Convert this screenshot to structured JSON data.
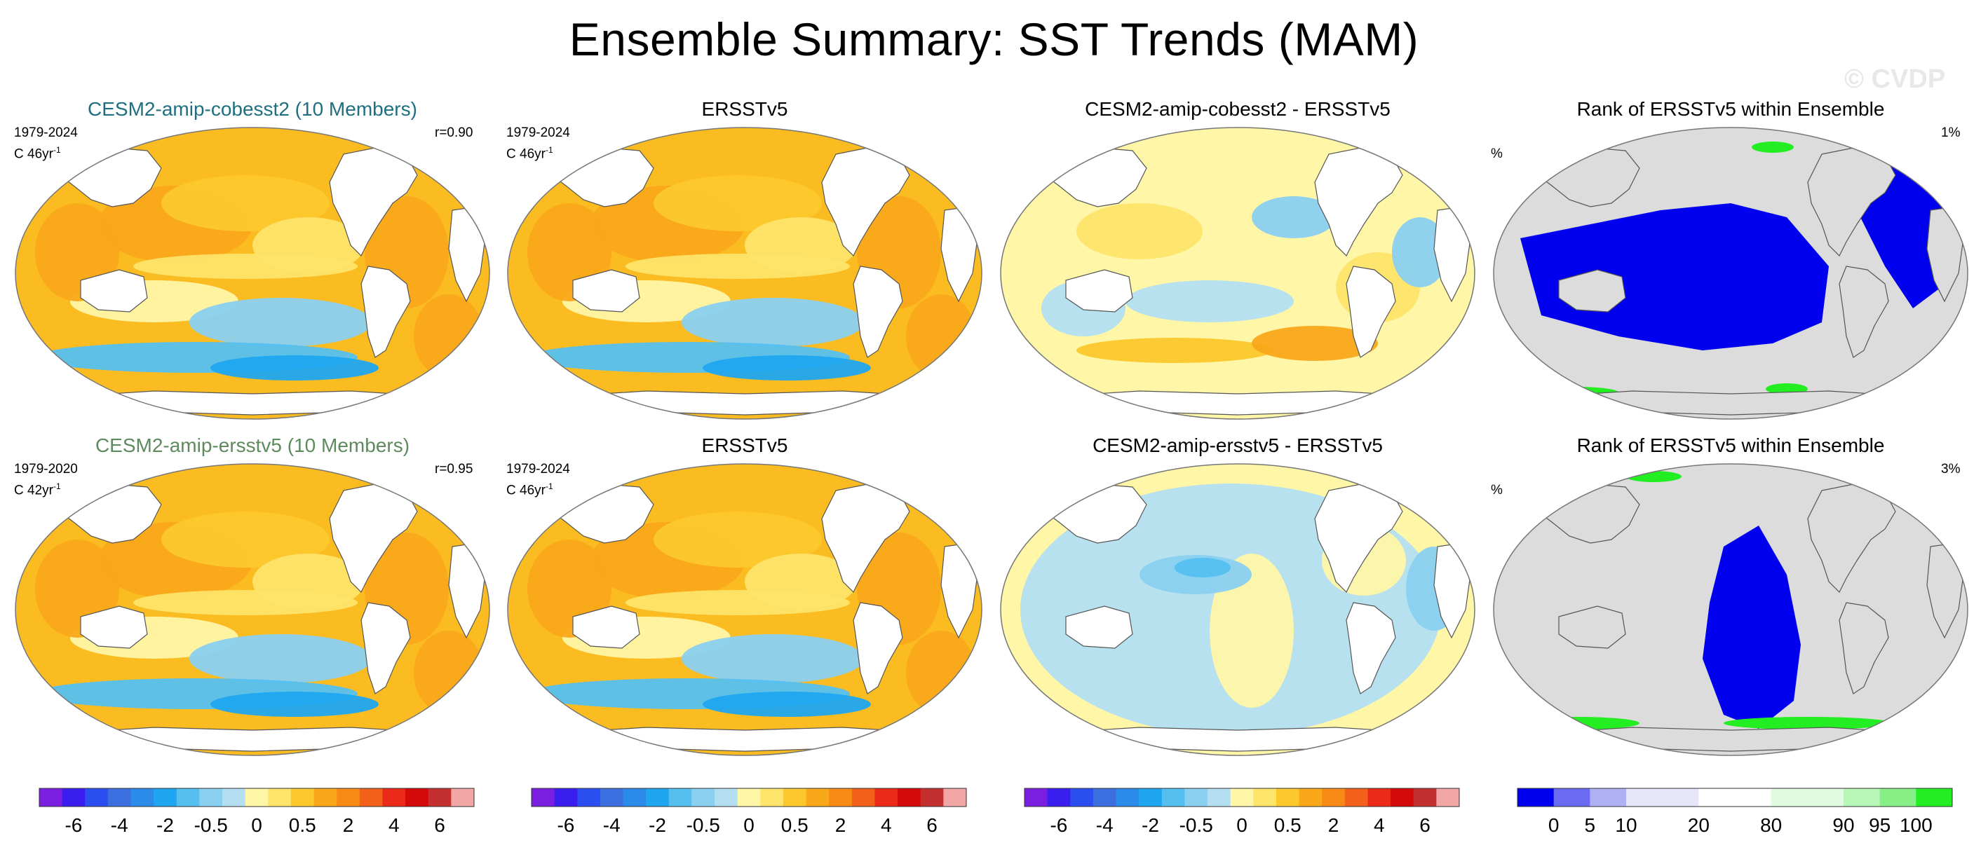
{
  "title": "Ensemble Summary: SST Trends (MAM)",
  "watermark": "© CVDP",
  "colors": {
    "ocean": "#fbbc21",
    "land": "#ffffff",
    "coast": "#555555",
    "model1_title": "#1f6f80",
    "model2_title": "#5f8a5f",
    "rank_background": "#dcdcdc",
    "rank_low": "#0000ee",
    "rank_high": "#22ee22"
  },
  "panels": [
    {
      "title": "CESM2-amip-cobesst2 (10 Members)",
      "period": "1979-2024",
      "units": "C 46yr",
      "units_exp": "-1",
      "corr": "r=0.90"
    },
    {
      "title": "ERSSTv5",
      "period": "1979-2024",
      "units": "C 46yr",
      "units_exp": "-1"
    },
    {
      "title": "CESM2-amip-cobesst2 - ERSSTv5"
    },
    {
      "title": "Rank of ERSSTv5 within Ensemble",
      "pct_label": "%",
      "rank_pct": "1%"
    },
    {
      "title": "CESM2-amip-ersstv5 (10 Members)",
      "period": "1979-2020",
      "units": "C 42yr",
      "units_exp": "-1",
      "corr": "r=0.95"
    },
    {
      "title": "ERSSTv5",
      "period": "1979-2024",
      "units": "C 46yr",
      "units_exp": "-1"
    },
    {
      "title": "CESM2-amip-ersstv5 - ERSSTv5"
    },
    {
      "title": "Rank of ERSSTv5 within Ensemble",
      "pct_label": "%",
      "rank_pct": "3%"
    }
  ],
  "colorbars": {
    "trend": {
      "colors": [
        "#7a1fe0",
        "#3a1ef0",
        "#2a4ef0",
        "#3b6fe0",
        "#2b8be8",
        "#1ea6f0",
        "#55c0f0",
        "#8ad0f0",
        "#b4dff2",
        "#fff6a8",
        "#fde46a",
        "#fcc82c",
        "#f9a81a",
        "#f68a14",
        "#f2601a",
        "#ec2a1a",
        "#d40a0a",
        "#c43030",
        "#f2a6a6"
      ],
      "tick_labels": [
        "-6",
        "-4",
        "-2",
        "-0.5",
        "0",
        "0.5",
        "2",
        "4",
        "6"
      ],
      "tick_positions": [
        2,
        4,
        6,
        8,
        10,
        12,
        14,
        16,
        18
      ]
    },
    "rank": {
      "colors": [
        "#0000ee",
        "#6a6af2",
        "#b0b0f4",
        "#e6e6fb",
        "#e6e6fb",
        "#ffffff",
        "#ffffff",
        "#e0fbe0",
        "#e0fbe0",
        "#b6f6b6",
        "#86f086",
        "#22ee22"
      ],
      "tick_labels": [
        "0",
        "5",
        "10",
        "20",
        "80",
        "90",
        "95",
        "100"
      ],
      "tick_positions": [
        1,
        2,
        3,
        5,
        7,
        9,
        10,
        11
      ]
    }
  },
  "chart_data": [
    {
      "type": "heatmap",
      "title": "CESM2-amip-cobesst2 (10 Members)",
      "period": "1979-2024",
      "units": "C 46yr-1",
      "pattern_correlation": 0.9,
      "colorbar_ticks": [
        -6,
        -4,
        -2,
        -0.5,
        0,
        0.5,
        2,
        4,
        6
      ],
      "summary": {
        "dominant_range": [
          0.5,
          2
        ],
        "southern_ocean_range": [
          -2,
          -0.5
        ]
      }
    },
    {
      "type": "heatmap",
      "title": "ERSSTv5",
      "period": "1979-2024",
      "units": "C 46yr-1",
      "colorbar_ticks": [
        -6,
        -4,
        -2,
        -0.5,
        0,
        0.5,
        2,
        4,
        6
      ],
      "summary": {
        "dominant_range": [
          0.5,
          2
        ],
        "eastern_pacific_range": [
          -0.5,
          0
        ]
      }
    },
    {
      "type": "heatmap",
      "title": "CESM2-amip-cobesst2 - ERSSTv5",
      "colorbar_ticks": [
        -6,
        -4,
        -2,
        -0.5,
        0,
        0.5,
        2,
        4,
        6
      ],
      "summary": {
        "dominant_range": [
          -0.5,
          0.5
        ]
      }
    },
    {
      "type": "heatmap",
      "title": "Rank of ERSSTv5 within Ensemble",
      "rank_percent": 1,
      "colorbar_ticks": [
        0,
        5,
        10,
        20,
        80,
        90,
        95,
        100
      ]
    },
    {
      "type": "heatmap",
      "title": "CESM2-amip-ersstv5 (10 Members)",
      "period": "1979-2020",
      "units": "C 42yr-1",
      "pattern_correlation": 0.95,
      "colorbar_ticks": [
        -6,
        -4,
        -2,
        -0.5,
        0,
        0.5,
        2,
        4,
        6
      ],
      "summary": {
        "dominant_range": [
          0.5,
          2
        ],
        "southern_ocean_range": [
          -2,
          -0.5
        ]
      }
    },
    {
      "type": "heatmap",
      "title": "ERSSTv5",
      "period": "1979-2024",
      "units": "C 46yr-1",
      "colorbar_ticks": [
        -6,
        -4,
        -2,
        -0.5,
        0,
        0.5,
        2,
        4,
        6
      ],
      "summary": {
        "dominant_range": [
          0.5,
          2
        ]
      }
    },
    {
      "type": "heatmap",
      "title": "CESM2-amip-ersstv5 - ERSSTv5",
      "colorbar_ticks": [
        -6,
        -4,
        -2,
        -0.5,
        0,
        0.5,
        2,
        4,
        6
      ],
      "summary": {
        "dominant_range": [
          -0.5,
          0
        ]
      }
    },
    {
      "type": "heatmap",
      "title": "Rank of ERSSTv5 within Ensemble",
      "rank_percent": 3,
      "colorbar_ticks": [
        0,
        5,
        10,
        20,
        80,
        90,
        95,
        100
      ]
    }
  ]
}
